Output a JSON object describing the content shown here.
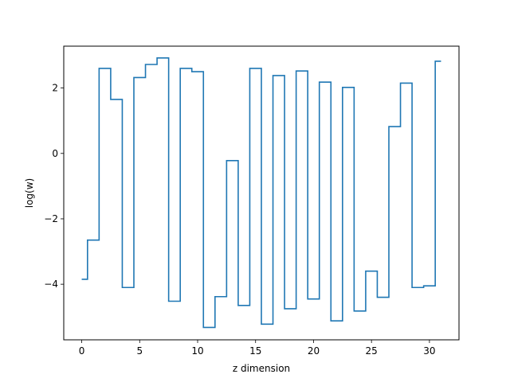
{
  "chart_data": {
    "type": "line",
    "drawstyle": "steps-mid",
    "xlabel": "z dimension",
    "ylabel": "log(w)",
    "xlim": [
      -1.55,
      32.55
    ],
    "ylim": [
      -5.7,
      3.28
    ],
    "xticks": [
      0,
      5,
      10,
      15,
      20,
      25,
      30
    ],
    "xtick_labels": [
      "0",
      "5",
      "10",
      "15",
      "20",
      "25",
      "30"
    ],
    "yticks": [
      -4,
      -2,
      0,
      2
    ],
    "ytick_labels": [
      "−4",
      "−2",
      "0",
      "2"
    ],
    "grid": false,
    "line_color": "#1f77b4",
    "series": [
      {
        "x": [
          0,
          1,
          2,
          3,
          4,
          5,
          6,
          7,
          8,
          9,
          10,
          11,
          12,
          13,
          14,
          15,
          16,
          17,
          18,
          19,
          20,
          21,
          22,
          23,
          24,
          25,
          26,
          27,
          28,
          29,
          30,
          31
        ],
        "values": [
          -3.85,
          -2.65,
          2.6,
          1.65,
          -4.1,
          2.32,
          2.72,
          2.92,
          -4.52,
          2.6,
          2.5,
          -5.32,
          -4.38,
          -0.22,
          -4.65,
          2.6,
          -5.22,
          2.38,
          -4.75,
          2.52,
          -4.45,
          2.18,
          -5.12,
          2.02,
          -4.82,
          -3.6,
          -4.4,
          0.82,
          2.15,
          -4.1,
          -4.05,
          2.82
        ]
      }
    ]
  }
}
